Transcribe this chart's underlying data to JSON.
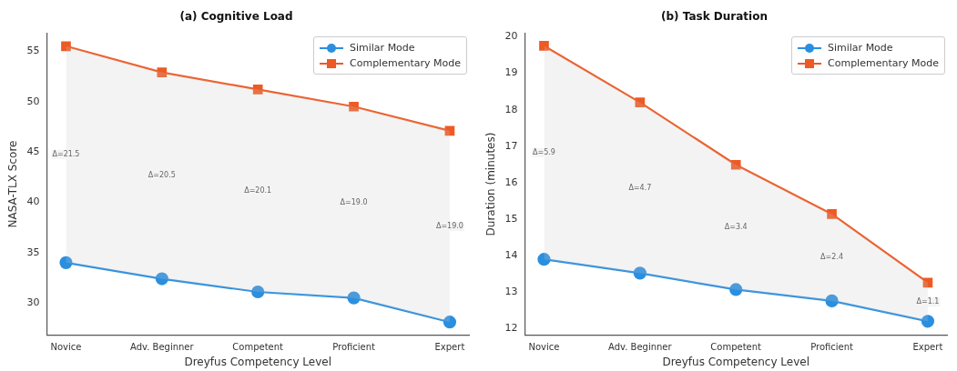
{
  "chart_data": [
    {
      "type": "line",
      "title": "(a) Cognitive Load",
      "xlabel": "Dreyfus Competency Level",
      "ylabel": "NASA-TLX Score",
      "categories": [
        "Novice",
        "Adv. Beginner",
        "Competent",
        "Proficient",
        "Expert"
      ],
      "series": [
        {
          "name": "Similar Mode",
          "color": "#2b8fe0",
          "marker": "circle",
          "values": [
            34.0,
            32.4,
            31.1,
            30.5,
            28.1
          ]
        },
        {
          "name": "Complementary Mode",
          "color": "#ee5a24",
          "marker": "square",
          "values": [
            55.5,
            52.9,
            51.2,
            49.5,
            47.1
          ],
          "lower": [
            34.0,
            32.4,
            31.1,
            30.5,
            28.1
          ],
          "upper": [
            55.5,
            52.9,
            51.2,
            49.5,
            47.1
          ]
        }
      ],
      "ylim": [
        26.8,
        56.8
      ],
      "yticks": [
        30,
        35,
        40,
        45,
        50,
        55
      ],
      "grid": false,
      "legend": "top right",
      "annotations": [
        "Δ=21.5",
        "Δ=20.5",
        "Δ=20.1",
        "Δ=19.0",
        "Δ=19.0"
      ]
    },
    {
      "type": "line",
      "title": "(b) Task Duration",
      "xlabel": "Dreyfus Competency Level",
      "ylabel": "Duration (minutes)",
      "categories": [
        "Novice",
        "Adv. Beginner",
        "Competent",
        "Proficient",
        "Expert"
      ],
      "series": [
        {
          "name": "Similar Mode",
          "color": "#2b8fe0",
          "marker": "circle",
          "values": [
            13.9,
            13.52,
            13.07,
            12.76,
            12.2
          ]
        },
        {
          "name": "Complementary Mode",
          "color": "#ee5a24",
          "marker": "square",
          "values": [
            19.75,
            18.2,
            16.49,
            15.14,
            13.26
          ],
          "lower": [
            13.9,
            13.52,
            13.07,
            12.76,
            12.2
          ],
          "upper": [
            19.75,
            18.2,
            16.49,
            15.14,
            13.26
          ]
        }
      ],
      "ylim": [
        11.82,
        20.1
      ],
      "yticks": [
        12,
        13,
        14,
        15,
        16,
        17,
        18,
        19,
        20
      ],
      "grid": false,
      "legend": "top right",
      "annotations": [
        "Δ=5.9",
        "Δ=4.7",
        "Δ=3.4",
        "Δ=2.4",
        "Δ=1.1"
      ]
    }
  ]
}
